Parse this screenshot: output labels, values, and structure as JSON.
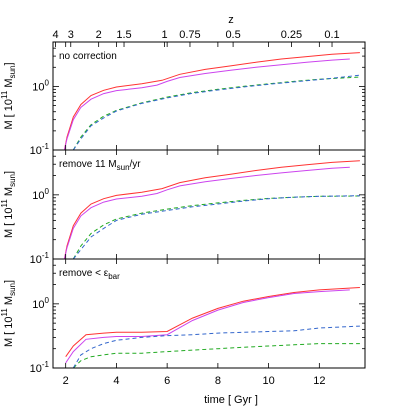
{
  "chart_data": {
    "type": "line",
    "top_axis": {
      "label": "z",
      "ticks": [
        {
          "label": "4",
          "t": 1.6
        },
        {
          "label": "3",
          "t": 2.2
        },
        {
          "label": "2",
          "t": 3.3
        },
        {
          "label": "1.5",
          "t": 4.3
        },
        {
          "label": "1",
          "t": 5.9
        },
        {
          "label": "0.75",
          "t": 6.9
        },
        {
          "label": "0.5",
          "t": 8.6
        },
        {
          "label": "0.25",
          "t": 10.9
        },
        {
          "label": "0.1",
          "t": 12.5
        }
      ]
    },
    "x_axis": {
      "label": "time [ Gyr ]",
      "lim": [
        1.5,
        13.8
      ],
      "ticks": [
        {
          "label": "2",
          "v": 2
        },
        {
          "label": "4",
          "v": 4
        },
        {
          "label": "6",
          "v": 6
        },
        {
          "label": "8",
          "v": 8
        },
        {
          "label": "10",
          "v": 10
        },
        {
          "label": "12",
          "v": 12
        }
      ]
    },
    "y_axis": {
      "scale": "log",
      "lim": [
        0.1,
        5
      ],
      "ticks": [
        {
          "label_base": "10",
          "label_exp": "-1",
          "v": 0.1
        },
        {
          "label_base": "10",
          "label_exp": "0",
          "v": 1
        }
      ]
    },
    "ylabel": {
      "prefix": "M [ 10",
      "exp": "11",
      "middle": " M",
      "sub": "sun",
      "suffix": "]"
    },
    "panels": [
      {
        "label": {
          "main": "no correction",
          "sub_text": "",
          "after": ""
        },
        "series": [
          {
            "color": "#ff3333",
            "style": "solid",
            "x": [
              1.95,
              2.05,
              2.3,
              2.6,
              3.0,
              3.5,
              4.0,
              5.0,
              5.8,
              6.5,
              7.5,
              8.5,
              9.5,
              10.5,
              11.5,
              12.5,
              13.6
            ],
            "y": [
              0.1,
              0.16,
              0.33,
              0.52,
              0.72,
              0.87,
              0.98,
              1.1,
              1.25,
              1.55,
              1.85,
              2.1,
              2.4,
              2.7,
              2.95,
              3.2,
              3.4
            ]
          },
          {
            "color": "#cc44ee",
            "style": "solid",
            "x": [
              1.95,
              2.05,
              2.3,
              2.6,
              3.0,
              3.5,
              4.0,
              5.0,
              5.6,
              6.0,
              6.5,
              7.5,
              8.5,
              9.5,
              10.5,
              11.5,
              12.5,
              13.2
            ],
            "y": [
              0.1,
              0.15,
              0.3,
              0.47,
              0.63,
              0.77,
              0.86,
              0.95,
              1.05,
              1.2,
              1.38,
              1.6,
              1.8,
              2.0,
              2.2,
              2.4,
              2.6,
              2.7
            ]
          },
          {
            "color": "#22aa22",
            "style": "dashed",
            "x": [
              2.3,
              2.6,
              3.0,
              3.5,
              4.0,
              5.0,
              6.0,
              7.0,
              8.0,
              9.0,
              10.0,
              11.0,
              12.0,
              13.6
            ],
            "y": [
              0.1,
              0.16,
              0.25,
              0.34,
              0.42,
              0.55,
              0.68,
              0.8,
              0.9,
              1.0,
              1.1,
              1.2,
              1.3,
              1.4
            ]
          },
          {
            "color": "#3366cc",
            "style": "dashed",
            "x": [
              2.3,
              2.6,
              3.0,
              3.5,
              4.0,
              5.0,
              6.0,
              7.0,
              8.0,
              9.0,
              10.0,
              11.0,
              12.0,
              13.6
            ],
            "y": [
              0.1,
              0.15,
              0.24,
              0.32,
              0.41,
              0.54,
              0.66,
              0.78,
              0.88,
              0.98,
              1.08,
              1.18,
              1.28,
              1.5
            ]
          }
        ]
      },
      {
        "label": {
          "main": "remove 11 M",
          "sub_text": "sun",
          "after": "/yr"
        },
        "series": [
          {
            "color": "#ff3333",
            "style": "solid",
            "x": [
              1.95,
              2.05,
              2.3,
              2.6,
              3.0,
              3.5,
              4.0,
              5.0,
              5.8,
              6.5,
              7.5,
              8.5,
              9.5,
              10.5,
              11.5,
              12.5,
              13.6
            ],
            "y": [
              0.1,
              0.16,
              0.33,
              0.52,
              0.72,
              0.87,
              0.98,
              1.1,
              1.25,
              1.55,
              1.85,
              2.1,
              2.4,
              2.7,
              2.95,
              3.2,
              3.4
            ]
          },
          {
            "color": "#cc44ee",
            "style": "solid",
            "x": [
              1.95,
              2.05,
              2.3,
              2.6,
              3.0,
              3.5,
              4.0,
              5.0,
              5.6,
              6.0,
              6.5,
              7.5,
              8.5,
              9.5,
              10.5,
              11.5,
              12.5,
              13.2
            ],
            "y": [
              0.1,
              0.15,
              0.3,
              0.47,
              0.63,
              0.77,
              0.86,
              0.95,
              1.05,
              1.2,
              1.38,
              1.6,
              1.8,
              2.0,
              2.2,
              2.4,
              2.6,
              2.7
            ]
          },
          {
            "color": "#22aa22",
            "style": "dashed",
            "x": [
              2.3,
              2.6,
              3.0,
              3.5,
              4.0,
              5.0,
              6.0,
              7.0,
              8.0,
              9.0,
              10.0,
              11.0,
              12.0,
              13.6
            ],
            "y": [
              0.1,
              0.16,
              0.25,
              0.34,
              0.42,
              0.52,
              0.6,
              0.68,
              0.75,
              0.82,
              0.88,
              0.92,
              0.95,
              0.96
            ]
          },
          {
            "color": "#3366cc",
            "style": "dashed",
            "x": [
              2.3,
              2.6,
              3.0,
              3.5,
              4.0,
              5.0,
              6.0,
              7.0,
              8.0,
              9.0,
              10.0,
              11.0,
              12.0,
              13.6
            ],
            "y": [
              0.1,
              0.14,
              0.22,
              0.3,
              0.4,
              0.5,
              0.57,
              0.65,
              0.72,
              0.8,
              0.87,
              0.92,
              0.95,
              0.97
            ]
          }
        ]
      },
      {
        "label": {
          "main": "remove < ε",
          "sub_text": "bar",
          "after": ""
        },
        "series": [
          {
            "color": "#ff3333",
            "style": "solid",
            "x": [
              2.0,
              2.3,
              2.8,
              3.5,
              4.0,
              5.0,
              6.0,
              7.0,
              8.0,
              9.0,
              10.0,
              11.0,
              12.0,
              13.6
            ],
            "y": [
              0.15,
              0.22,
              0.33,
              0.35,
              0.36,
              0.36,
              0.37,
              0.6,
              0.85,
              1.1,
              1.3,
              1.5,
              1.65,
              1.8
            ]
          },
          {
            "color": "#cc44ee",
            "style": "solid",
            "x": [
              2.0,
              2.3,
              2.8,
              3.5,
              4.0,
              5.0,
              6.0,
              7.0,
              8.0,
              9.0,
              10.0,
              11.0,
              12.0,
              13.2
            ],
            "y": [
              0.12,
              0.18,
              0.28,
              0.3,
              0.31,
              0.31,
              0.33,
              0.55,
              0.8,
              1.05,
              1.25,
              1.45,
              1.55,
              1.65
            ]
          },
          {
            "color": "#22aa22",
            "style": "dashed",
            "x": [
              2.3,
              2.6,
              3.0,
              3.5,
              4.0,
              5.0,
              6.0,
              7.0,
              8.0,
              9.0,
              10.0,
              11.0,
              12.0,
              13.6
            ],
            "y": [
              0.1,
              0.13,
              0.15,
              0.16,
              0.17,
              0.17,
              0.18,
              0.19,
              0.2,
              0.21,
              0.22,
              0.23,
              0.24,
              0.24
            ]
          },
          {
            "color": "#3366cc",
            "style": "dashed",
            "x": [
              2.3,
              2.6,
              3.0,
              3.5,
              4.0,
              5.0,
              6.0,
              7.0,
              8.0,
              9.0,
              10.0,
              11.0,
              12.0,
              13.6
            ],
            "y": [
              0.1,
              0.16,
              0.2,
              0.24,
              0.27,
              0.3,
              0.32,
              0.33,
              0.35,
              0.36,
              0.37,
              0.38,
              0.42,
              0.45
            ]
          }
        ]
      }
    ]
  }
}
